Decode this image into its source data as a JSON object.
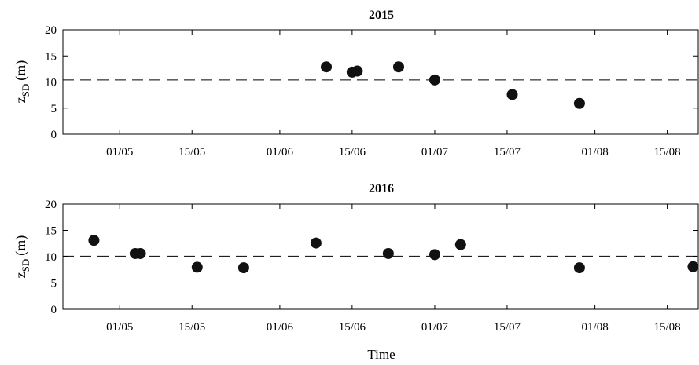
{
  "xlabel": "Time",
  "chart_data": [
    {
      "type": "scatter",
      "title": "2015",
      "ylabel": "z",
      "ylabel_subscript": "SD",
      "ylabel_unit": "(m)",
      "ylim": [
        0,
        20
      ],
      "yticks": [
        0,
        5,
        10,
        15,
        20
      ],
      "xlim": [
        "2015-04-20",
        "2015-08-21"
      ],
      "xticks": [
        "2015-05-01",
        "2015-05-15",
        "2015-06-01",
        "2015-06-15",
        "2015-07-01",
        "2015-07-15",
        "2015-08-01",
        "2015-08-15"
      ],
      "xtick_labels": [
        "01/05",
        "15/05",
        "01/06",
        "15/06",
        "01/07",
        "15/07",
        "01/08",
        "15/08"
      ],
      "reference_line_y": 10.4,
      "points": [
        {
          "x": "2015-06-10",
          "y": 12.9
        },
        {
          "x": "2015-06-15",
          "y": 11.9
        },
        {
          "x": "2015-06-16",
          "y": 12.1
        },
        {
          "x": "2015-06-24",
          "y": 12.9
        },
        {
          "x": "2015-07-01",
          "y": 10.4
        },
        {
          "x": "2015-07-16",
          "y": 7.6
        },
        {
          "x": "2015-07-29",
          "y": 5.9
        }
      ]
    },
    {
      "type": "scatter",
      "title": "2016",
      "ylabel": "z",
      "ylabel_subscript": "SD",
      "ylabel_unit": "(m)",
      "ylim": [
        0,
        20
      ],
      "yticks": [
        0,
        5,
        10,
        15,
        20
      ],
      "xlim": [
        "2016-04-20",
        "2016-08-21"
      ],
      "xticks": [
        "2016-05-01",
        "2016-05-15",
        "2016-06-01",
        "2016-06-15",
        "2016-07-01",
        "2016-07-15",
        "2016-08-01",
        "2016-08-15"
      ],
      "xtick_labels": [
        "01/05",
        "15/05",
        "01/06",
        "15/06",
        "01/07",
        "15/07",
        "01/08",
        "15/08"
      ],
      "reference_line_y": 10.1,
      "points": [
        {
          "x": "2016-04-26",
          "y": 13.1
        },
        {
          "x": "2016-05-04",
          "y": 10.6
        },
        {
          "x": "2016-05-05",
          "y": 10.6
        },
        {
          "x": "2016-05-16",
          "y": 8.0
        },
        {
          "x": "2016-05-25",
          "y": 7.9
        },
        {
          "x": "2016-06-08",
          "y": 12.6
        },
        {
          "x": "2016-06-22",
          "y": 10.6
        },
        {
          "x": "2016-07-01",
          "y": 10.4
        },
        {
          "x": "2016-07-06",
          "y": 12.3
        },
        {
          "x": "2016-07-29",
          "y": 7.9
        },
        {
          "x": "2016-08-20",
          "y": 8.1
        }
      ]
    }
  ]
}
